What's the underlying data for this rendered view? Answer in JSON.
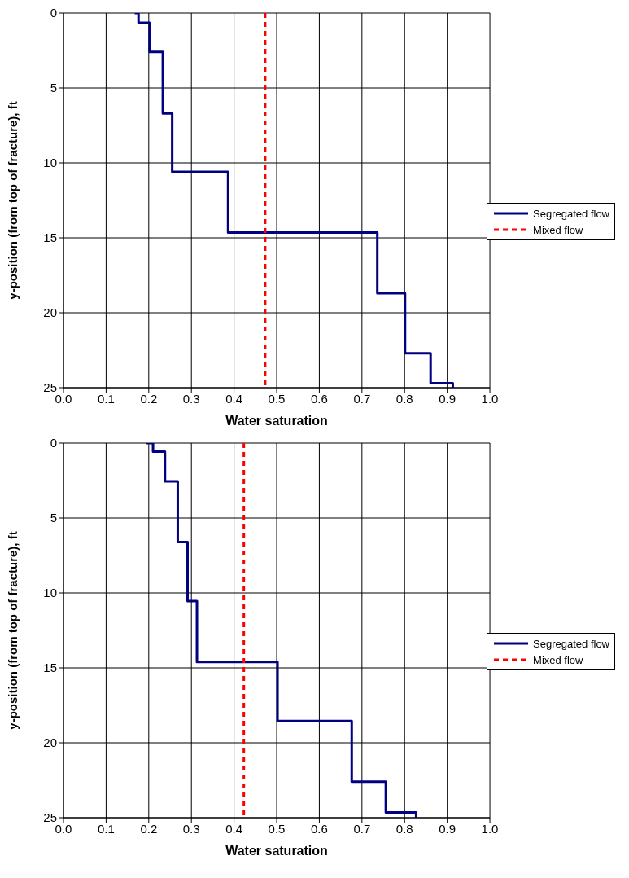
{
  "chart_data": [
    {
      "type": "line",
      "xlabel": "Water saturation",
      "ylabel": "y-position (from top of fracture), ft",
      "xlim": [
        0,
        1
      ],
      "ylim": [
        25,
        0
      ],
      "xticks": [
        {
          "value": 0,
          "label": "0.0"
        },
        {
          "value": 0.1,
          "label": "0.1"
        },
        {
          "value": 0.2,
          "label": "0.2"
        },
        {
          "value": 0.3,
          "label": "0.3"
        },
        {
          "value": 0.4,
          "label": "0.4"
        },
        {
          "value": 0.5,
          "label": "0.5"
        },
        {
          "value": 0.6,
          "label": "0.6"
        },
        {
          "value": 0.7,
          "label": "0.7"
        },
        {
          "value": 0.8,
          "label": "0.8"
        },
        {
          "value": 0.9,
          "label": "0.9"
        },
        {
          "value": 1,
          "label": "1.0"
        }
      ],
      "yticks": [
        0,
        5,
        10,
        15,
        20,
        25
      ],
      "grid": true,
      "legend": "right",
      "marker": "none",
      "series": [
        {
          "name": "Segregated flow",
          "color": "#000080",
          "line_style": "solid",
          "x": [
            0.167,
            0.176,
            0.176,
            0.202,
            0.202,
            0.233,
            0.233,
            0.255,
            0.255,
            0.386,
            0.386,
            0.736,
            0.736,
            0.801,
            0.801,
            0.861,
            0.861,
            0.913,
            0.913
          ],
          "values": [
            0,
            0,
            0.65,
            0.65,
            2.6,
            2.6,
            6.7,
            6.7,
            10.6,
            10.6,
            14.65,
            14.65,
            18.7,
            18.7,
            22.7,
            22.7,
            24.7,
            24.7,
            25
          ]
        },
        {
          "name": "Mixed flow",
          "color": "#ff0000",
          "line_style": "dashed",
          "x": [
            0.473,
            0.473
          ],
          "values": [
            0,
            25
          ]
        }
      ]
    },
    {
      "type": "line",
      "xlabel": "Water saturation",
      "ylabel": "y-position (from top of fracture), ft",
      "xlim": [
        0,
        1
      ],
      "ylim": [
        25,
        0
      ],
      "xticks": [
        {
          "value": 0,
          "label": "0.0"
        },
        {
          "value": 0.1,
          "label": "0.1"
        },
        {
          "value": 0.2,
          "label": "0.2"
        },
        {
          "value": 0.3,
          "label": "0.3"
        },
        {
          "value": 0.4,
          "label": "0.4"
        },
        {
          "value": 0.5,
          "label": "0.5"
        },
        {
          "value": 0.6,
          "label": "0.6"
        },
        {
          "value": 0.7,
          "label": "0.7"
        },
        {
          "value": 0.8,
          "label": "0.8"
        },
        {
          "value": 0.9,
          "label": "0.9"
        },
        {
          "value": 1,
          "label": "1.0"
        }
      ],
      "yticks": [
        0,
        5,
        10,
        15,
        20,
        25
      ],
      "grid": true,
      "legend": "right",
      "marker": "none",
      "series": [
        {
          "name": "Segregated flow",
          "color": "#000080",
          "line_style": "solid",
          "x": [
            0.194,
            0.21,
            0.21,
            0.238,
            0.238,
            0.268,
            0.268,
            0.291,
            0.291,
            0.313,
            0.313,
            0.502,
            0.502,
            0.676,
            0.676,
            0.756,
            0.756,
            0.827,
            0.827
          ],
          "values": [
            0,
            0,
            0.57,
            0.57,
            2.55,
            2.55,
            6.6,
            6.6,
            10.55,
            10.55,
            14.6,
            14.6,
            18.55,
            18.55,
            22.6,
            22.6,
            24.65,
            24.65,
            25
          ]
        },
        {
          "name": "Mixed flow",
          "color": "#ff0000",
          "line_style": "dashed",
          "x": [
            0.423,
            0.423
          ],
          "values": [
            0,
            25
          ]
        }
      ]
    }
  ]
}
